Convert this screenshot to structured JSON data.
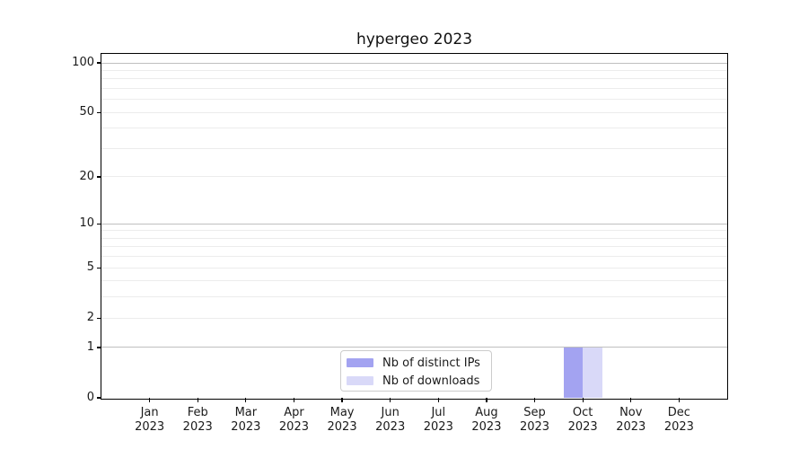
{
  "title": "hypergeo 2023",
  "legend": {
    "items": [
      {
        "label": "Nb of distinct IPs",
        "color": "#a3a3f1"
      },
      {
        "label": "Nb of downloads",
        "color": "#d9d9f8"
      }
    ]
  },
  "chart_data": {
    "type": "bar",
    "title": "hypergeo 2023",
    "categories": [
      "Jan 2023",
      "Feb 2023",
      "Mar 2023",
      "Apr 2023",
      "May 2023",
      "Jun 2023",
      "Jul 2023",
      "Aug 2023",
      "Sep 2023",
      "Oct 2023",
      "Nov 2023",
      "Dec 2023"
    ],
    "series": [
      {
        "name": "Nb of distinct IPs",
        "color": "#a3a3f1",
        "values": [
          0,
          0,
          0,
          0,
          0,
          0,
          0,
          0,
          0,
          1,
          0,
          0
        ]
      },
      {
        "name": "Nb of downloads",
        "color": "#d9d9f8",
        "values": [
          0,
          0,
          0,
          0,
          0,
          0,
          0,
          0,
          0,
          1,
          0,
          0
        ]
      }
    ],
    "xlabel": "",
    "ylabel": "",
    "yscale": "log1p",
    "ylim": [
      0,
      113
    ],
    "ytick_values": [
      0,
      1,
      2,
      5,
      10,
      20,
      50,
      100
    ],
    "major_gridlines": [
      1,
      10,
      100
    ],
    "minor_gridlines": [
      2,
      3,
      4,
      5,
      6,
      7,
      8,
      9,
      20,
      30,
      40,
      50,
      60,
      70,
      80,
      90
    ],
    "grid": "horizontal",
    "legend_position": "lower center inside",
    "bar_layout": "grouped centered on tick"
  },
  "colors": {
    "background": "#ffffff",
    "spine": "#000000",
    "major_grid": "#bfbfbf",
    "minor_grid": "#ececec",
    "text": "#1a1a1a",
    "legend_border": "#cccccc"
  }
}
